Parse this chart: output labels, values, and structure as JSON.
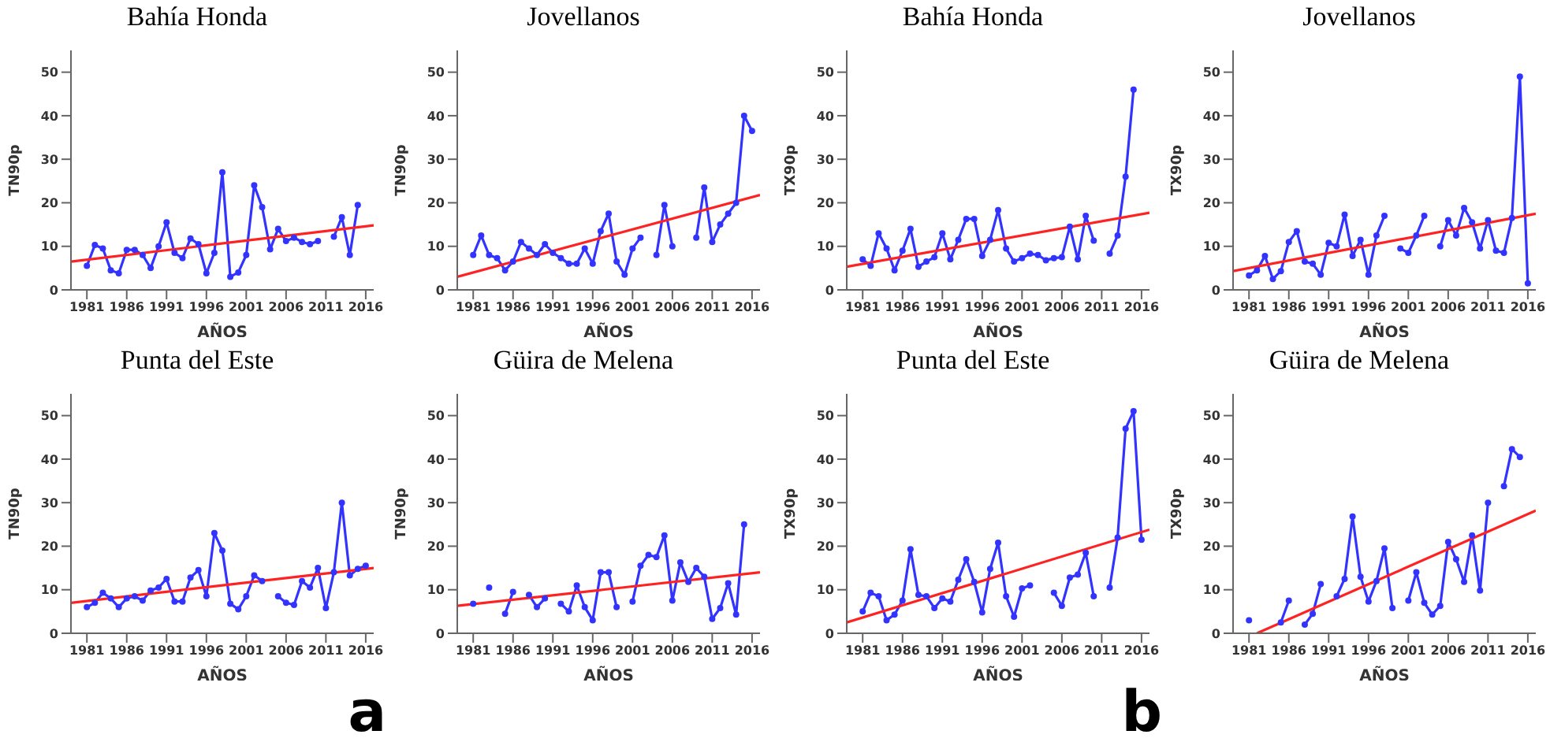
{
  "chart_data": [
    {
      "type": "line",
      "title": "Bahía Honda",
      "xlabel": "AÑOS",
      "ylabel": "TN90p",
      "x": [
        1981,
        1982,
        1983,
        1984,
        1985,
        1986,
        1987,
        1988,
        1989,
        1990,
        1991,
        1992,
        1993,
        1994,
        1995,
        1996,
        1997,
        1998,
        1999,
        2000,
        2001,
        2002,
        2003,
        2004,
        2005,
        2006,
        2007,
        2008,
        2009,
        2010,
        2011,
        2012,
        2013,
        2014,
        2015
      ],
      "xlim": [
        1979,
        2017
      ],
      "xticks": [
        1981,
        1986,
        1991,
        1996,
        2001,
        2006,
        2011,
        2016
      ],
      "ylim": [
        0,
        55
      ],
      "yticks": [
        0,
        10,
        20,
        30,
        40,
        50
      ],
      "marker": "circle",
      "series": [
        {
          "color": "#3333ff",
          "values": [
            5.5,
            10.3,
            9.5,
            4.5,
            3.8,
            9.2,
            9.2,
            8,
            5,
            10,
            15.5,
            8.5,
            7.3,
            11.8,
            10.5,
            3.8,
            8.5,
            27,
            3,
            4,
            8,
            24,
            19,
            9.3,
            14,
            11.2,
            12,
            11,
            10.5,
            11.2,
            null,
            12.2,
            16.7,
            8,
            19.5
          ]
        },
        {
          "type": "line",
          "marker": "none",
          "color": "#ff2222",
          "x": [
            1979,
            2017
          ],
          "values": [
            6.5,
            14.8
          ]
        }
      ]
    },
    {
      "type": "line",
      "title": "Jovellanos",
      "xlabel": "AÑOS",
      "ylabel": "TN90p",
      "x": [
        1981,
        1982,
        1983,
        1984,
        1985,
        1986,
        1987,
        1988,
        1989,
        1990,
        1991,
        1992,
        1993,
        1994,
        1995,
        1996,
        1997,
        1998,
        1999,
        2000,
        2001,
        2002,
        2003,
        2004,
        2005,
        2006,
        2007,
        2008,
        2009,
        2010,
        2011,
        2012,
        2013,
        2014,
        2015,
        2016
      ],
      "xlim": [
        1979,
        2017
      ],
      "xticks": [
        1981,
        1986,
        1991,
        1996,
        2001,
        2006,
        2011,
        2016
      ],
      "ylim": [
        0,
        55
      ],
      "yticks": [
        0,
        10,
        20,
        30,
        40,
        50
      ],
      "marker": "circle",
      "series": [
        {
          "color": "#3333ff",
          "values": [
            8,
            12.5,
            8,
            7.3,
            4.5,
            6.5,
            11,
            9.5,
            8,
            10.5,
            8.5,
            7.3,
            6,
            6,
            9.5,
            6,
            13.5,
            17.5,
            6.5,
            3.5,
            9.5,
            12,
            null,
            8,
            19.5,
            10,
            null,
            null,
            12,
            23.5,
            11,
            15,
            17.5,
            20,
            40,
            36.5
          ]
        },
        {
          "type": "line",
          "marker": "none",
          "color": "#ff2222",
          "x": [
            1979,
            2017
          ],
          "values": [
            3,
            21.8
          ]
        }
      ]
    },
    {
      "type": "line",
      "title": "Bahía Honda",
      "xlabel": "AÑOS",
      "ylabel": "TX90p",
      "x": [
        1981,
        1982,
        1983,
        1984,
        1985,
        1986,
        1987,
        1988,
        1989,
        1990,
        1991,
        1992,
        1993,
        1994,
        1995,
        1996,
        1997,
        1998,
        1999,
        2000,
        2001,
        2002,
        2003,
        2004,
        2005,
        2006,
        2007,
        2008,
        2009,
        2010,
        2011,
        2012,
        2013,
        2014,
        2015
      ],
      "xlim": [
        1979,
        2017
      ],
      "xticks": [
        1981,
        1986,
        1991,
        1996,
        2001,
        2006,
        2011,
        2016
      ],
      "ylim": [
        0,
        55
      ],
      "yticks": [
        0,
        10,
        20,
        30,
        40,
        50
      ],
      "marker": "circle",
      "series": [
        {
          "color": "#3333ff",
          "values": [
            7,
            5.5,
            13,
            9.5,
            4.5,
            9,
            14,
            5.3,
            6.5,
            7.5,
            13,
            7,
            11.5,
            16.3,
            16.3,
            7.8,
            11.5,
            18.3,
            9.5,
            6.5,
            7.3,
            8.3,
            8,
            6.8,
            7.3,
            7.5,
            14.5,
            7,
            17,
            11.3,
            null,
            8.3,
            12.5,
            26,
            46
          ]
        },
        {
          "type": "line",
          "marker": "none",
          "color": "#ff2222",
          "x": [
            1979,
            2017
          ],
          "values": [
            5.3,
            17.7
          ]
        }
      ]
    },
    {
      "type": "line",
      "title": "Jovellanos",
      "xlabel": "AÑOS",
      "ylabel": "TX90p",
      "x": [
        1981,
        1982,
        1983,
        1984,
        1985,
        1986,
        1987,
        1988,
        1989,
        1990,
        1991,
        1992,
        1993,
        1994,
        1995,
        1996,
        1997,
        1998,
        1999,
        2000,
        2001,
        2002,
        2003,
        2004,
        2005,
        2006,
        2007,
        2008,
        2009,
        2010,
        2011,
        2012,
        2013,
        2014,
        2015,
        2016
      ],
      "xlim": [
        1979,
        2017
      ],
      "xticks": [
        1981,
        1986,
        1991,
        1996,
        2001,
        2006,
        2011,
        2016
      ],
      "ylim": [
        0,
        55
      ],
      "yticks": [
        0,
        10,
        20,
        30,
        40,
        50
      ],
      "marker": "circle",
      "series": [
        {
          "color": "#3333ff",
          "values": [
            3.3,
            4.5,
            7.8,
            2.5,
            4.3,
            11,
            13.5,
            6.5,
            6,
            3.5,
            10.8,
            10,
            17.3,
            7.8,
            11.5,
            3.5,
            12.5,
            17,
            null,
            9.5,
            8.5,
            12.5,
            17,
            null,
            10,
            16,
            12.5,
            18.8,
            15.5,
            9.5,
            16,
            9,
            8.5,
            16.5,
            49,
            1.5
          ]
        },
        {
          "type": "line",
          "marker": "none",
          "color": "#ff2222",
          "x": [
            1979,
            2017
          ],
          "values": [
            4.3,
            17.5
          ]
        }
      ]
    },
    {
      "type": "line",
      "title": "Punta del Este",
      "xlabel": "AÑOS",
      "ylabel": "TN90p",
      "annotations": [
        "a"
      ],
      "x": [
        1981,
        1982,
        1983,
        1984,
        1985,
        1986,
        1987,
        1988,
        1989,
        1990,
        1991,
        1992,
        1993,
        1994,
        1995,
        1996,
        1997,
        1998,
        1999,
        2000,
        2001,
        2002,
        2003,
        2004,
        2005,
        2006,
        2007,
        2008,
        2009,
        2010,
        2011,
        2012,
        2013,
        2014,
        2015,
        2016
      ],
      "xlim": [
        1979,
        2017
      ],
      "xticks": [
        1981,
        1986,
        1991,
        1996,
        2001,
        2006,
        2011,
        2016
      ],
      "ylim": [
        0,
        55
      ],
      "yticks": [
        0,
        10,
        20,
        30,
        40,
        50
      ],
      "marker": "circle",
      "series": [
        {
          "color": "#3333ff",
          "values": [
            6,
            7,
            9.3,
            8,
            6,
            8,
            8.5,
            7.5,
            9.8,
            10.5,
            12.5,
            7.3,
            7.3,
            12.8,
            14.5,
            8.5,
            23,
            19,
            6.8,
            5.5,
            8.5,
            13.3,
            12,
            null,
            8.5,
            7,
            6.5,
            12,
            10.5,
            15,
            5.8,
            14,
            30,
            13.3,
            14.8,
            15.5
          ]
        },
        {
          "type": "line",
          "marker": "none",
          "color": "#ff2222",
          "x": [
            1979,
            2017
          ],
          "values": [
            7,
            15
          ]
        }
      ]
    },
    {
      "type": "line",
      "title": "Güira de Melena",
      "xlabel": "AÑOS",
      "ylabel": "TN90p",
      "x": [
        1981,
        1982,
        1983,
        1984,
        1985,
        1986,
        1987,
        1988,
        1989,
        1990,
        1991,
        1992,
        1993,
        1994,
        1995,
        1996,
        1997,
        1998,
        1999,
        2000,
        2001,
        2002,
        2003,
        2004,
        2005,
        2006,
        2007,
        2008,
        2009,
        2010,
        2011,
        2012,
        2013,
        2014,
        2015
      ],
      "xlim": [
        1979,
        2017
      ],
      "xticks": [
        1981,
        1986,
        1991,
        1996,
        2001,
        2006,
        2011,
        2016
      ],
      "ylim": [
        0,
        55
      ],
      "yticks": [
        0,
        10,
        20,
        30,
        40,
        50
      ],
      "marker": "circle",
      "series": [
        {
          "color": "#3333ff",
          "values": [
            6.8,
            null,
            10.5,
            null,
            4.5,
            9.5,
            null,
            8.8,
            6,
            8,
            null,
            6.8,
            5,
            11,
            6,
            3,
            14,
            14,
            6,
            null,
            7.3,
            15.5,
            18,
            17.5,
            22.5,
            7.5,
            16.3,
            11.8,
            15,
            13,
            3.3,
            5.8,
            11.5,
            4.3,
            25
          ]
        },
        {
          "type": "line",
          "marker": "none",
          "color": "#ff2222",
          "x": [
            1979,
            2017
          ],
          "values": [
            6.3,
            14
          ]
        }
      ]
    },
    {
      "type": "line",
      "title": "Punta del Este",
      "xlabel": "AÑOS",
      "ylabel": "TX90p",
      "annotations": [
        "b"
      ],
      "x": [
        1981,
        1982,
        1983,
        1984,
        1985,
        1986,
        1987,
        1988,
        1989,
        1990,
        1991,
        1992,
        1993,
        1994,
        1995,
        1996,
        1997,
        1998,
        1999,
        2000,
        2001,
        2002,
        2003,
        2004,
        2005,
        2006,
        2007,
        2008,
        2009,
        2010,
        2011,
        2012,
        2013,
        2014,
        2015,
        2016
      ],
      "xlim": [
        1979,
        2017
      ],
      "xticks": [
        1981,
        1986,
        1991,
        1996,
        2001,
        2006,
        2011,
        2016
      ],
      "ylim": [
        0,
        55
      ],
      "yticks": [
        0,
        10,
        20,
        30,
        40,
        50
      ],
      "marker": "circle",
      "series": [
        {
          "color": "#3333ff",
          "values": [
            5,
            9.3,
            8.5,
            3,
            4.3,
            7.5,
            19.3,
            8.8,
            8.5,
            5.8,
            8,
            7.3,
            12.3,
            17,
            11.8,
            4.8,
            14.8,
            20.8,
            8.5,
            3.8,
            10.3,
            11,
            null,
            null,
            9.3,
            6.3,
            12.8,
            13.5,
            18.5,
            8.5,
            null,
            10.5,
            22,
            47,
            51,
            21.5
          ]
        },
        {
          "type": "line",
          "marker": "none",
          "color": "#ff2222",
          "x": [
            1979,
            2017
          ],
          "values": [
            2.5,
            23.8
          ]
        }
      ]
    },
    {
      "type": "line",
      "title": "Güira de Melena",
      "xlabel": "AÑOS",
      "ylabel": "TX90p",
      "x": [
        1981,
        1982,
        1983,
        1984,
        1985,
        1986,
        1987,
        1988,
        1989,
        1990,
        1991,
        1992,
        1993,
        1994,
        1995,
        1996,
        1997,
        1998,
        1999,
        2000,
        2001,
        2002,
        2003,
        2004,
        2005,
        2006,
        2007,
        2008,
        2009,
        2010,
        2011,
        2012,
        2013,
        2014,
        2015
      ],
      "xlim": [
        1979,
        2017
      ],
      "xticks": [
        1981,
        1986,
        1991,
        1996,
        2001,
        2006,
        2011,
        2016
      ],
      "ylim": [
        0,
        55
      ],
      "yticks": [
        0,
        10,
        20,
        30,
        40,
        50
      ],
      "marker": "circle",
      "series": [
        {
          "color": "#3333ff",
          "values": [
            3,
            null,
            null,
            null,
            2.5,
            7.5,
            null,
            2,
            4.5,
            11.3,
            null,
            8.5,
            12.5,
            26.8,
            13,
            7.3,
            12,
            19.5,
            5.8,
            null,
            7.5,
            14,
            7,
            4.3,
            6.3,
            21,
            17,
            11.8,
            22.5,
            9.8,
            30,
            null,
            33.8,
            42.3,
            40.5
          ]
        },
        {
          "type": "line",
          "marker": "none",
          "color": "#ff2222",
          "x": [
            1982,
            2017
          ],
          "values": [
            0,
            28.2
          ]
        }
      ]
    }
  ]
}
